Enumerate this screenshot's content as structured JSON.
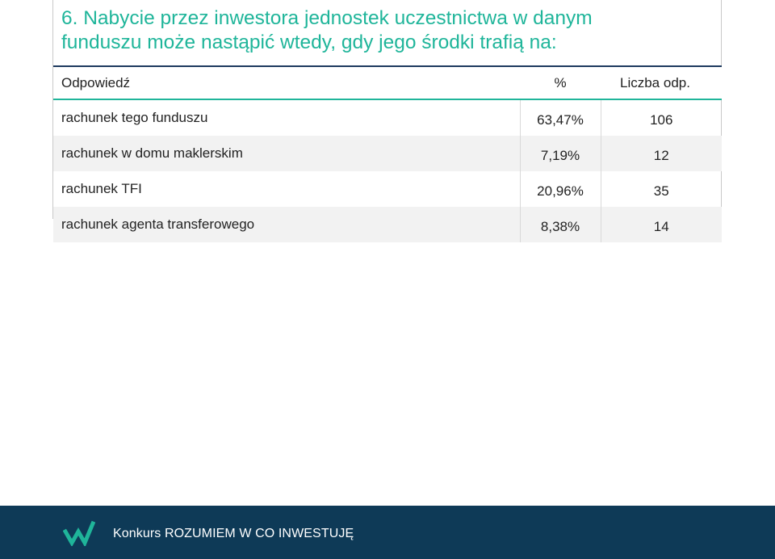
{
  "slide": {
    "title_line1": "6. Nabycie przez inwestora jednostek uczestnictwa w danym",
    "title_line2": "funduszu może nastąpić wtedy, gdy jego środki trafią na:"
  },
  "table": {
    "headers": {
      "answer": "Odpowiedź",
      "percent": "%",
      "count": "Liczba odp."
    },
    "rows": [
      {
        "answer": "rachunek tego funduszu",
        "percent": "63,47%",
        "count": "106"
      },
      {
        "answer": "rachunek w domu maklerskim",
        "percent": "7,19%",
        "count": "12"
      },
      {
        "answer": "rachunek TFI",
        "percent": "20,96%",
        "count": "35"
      },
      {
        "answer": "rachunek agenta transferowego",
        "percent": "8,38%",
        "count": "14"
      }
    ]
  },
  "footer": {
    "text": "Konkurs ROZUMIEM W CO INWESTUJĘ",
    "logo_icon": "w-checkmark-logo-icon"
  },
  "colors": {
    "title": "#1fb59a",
    "header_top_border": "#1e3a5f",
    "header_bottom_border": "#1fb59a",
    "footer_bg": "#0e3a57",
    "logo": "#1fb59a"
  }
}
